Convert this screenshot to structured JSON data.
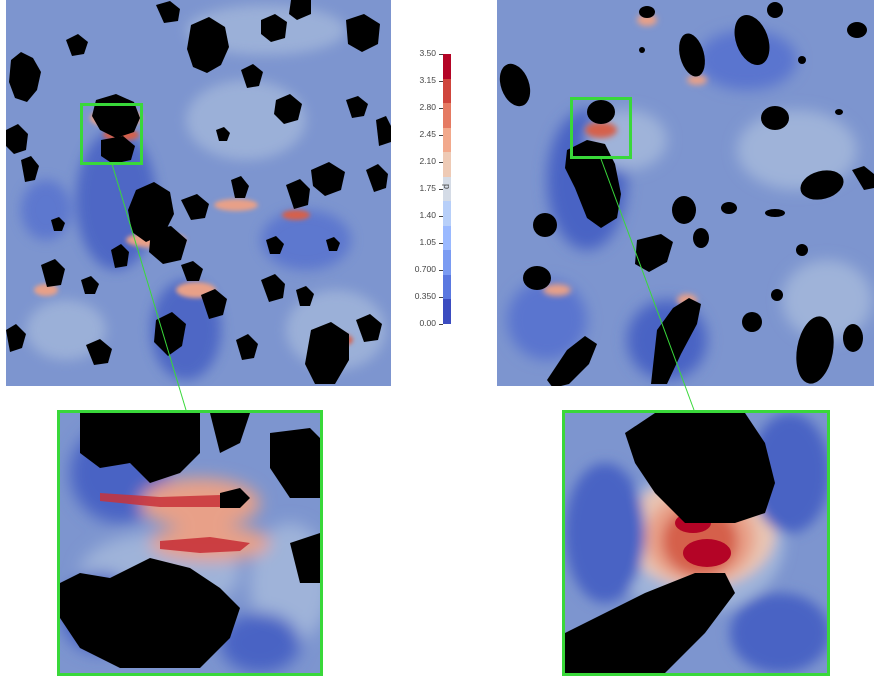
{
  "colorbar": {
    "title": "p",
    "ticks": [
      "3.50",
      "3.15",
      "2.80",
      "2.45",
      "2.10",
      "1.75",
      "1.40",
      "1.05",
      "0.700",
      "0.350",
      "0.00"
    ],
    "range": [
      0,
      3.5
    ],
    "colors_bottom_to_top": [
      "#3b4cc0",
      "#5a78e0",
      "#7a9bf2",
      "#9ab9ff",
      "#b7cff9",
      "#d4dbe6",
      "#eecab5",
      "#f2a98c",
      "#e57a62",
      "#cf453c",
      "#b40426"
    ]
  },
  "panels": {
    "left": {
      "description_colors": {
        "background": "#7d95cf",
        "solid": "#000000",
        "high": "#cf453c"
      }
    },
    "right": {
      "description_colors": {
        "background": "#7d95cf",
        "solid": "#000000",
        "high": "#cf453c"
      }
    }
  },
  "highlight_color": "#39d83a"
}
